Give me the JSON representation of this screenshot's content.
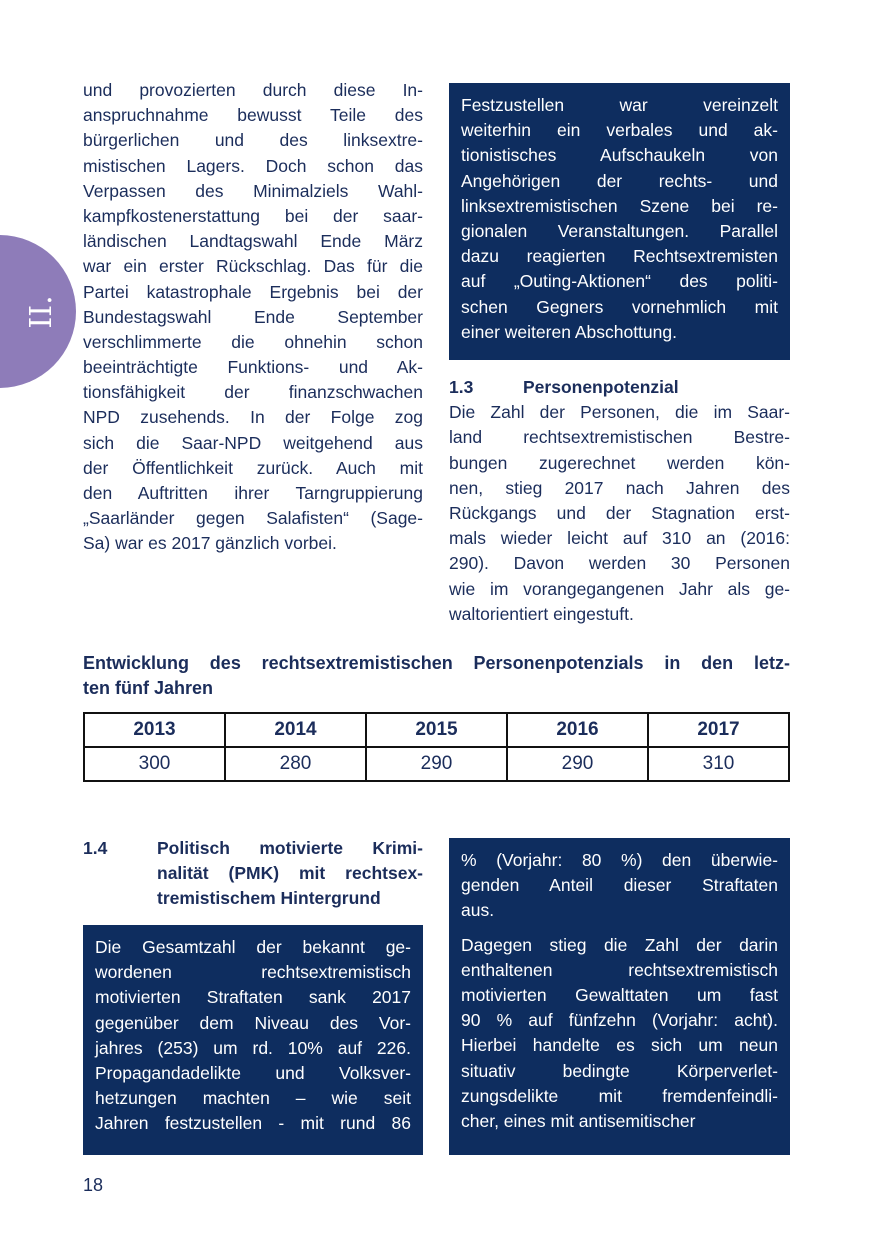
{
  "chapter_tab": "II.",
  "left_column": [
    "und provozierten durch diese In-",
    "anspruchnahme bewusst Teile des",
    "bürgerlichen und des linksextre-",
    "mistischen Lagers. Doch schon das",
    "Verpassen des Minimalziels Wahl-",
    "kampfkostenerstattung bei der saar-",
    "ländischen Landtagswahl Ende März",
    "war ein erster Rückschlag. Das für die",
    "Partei katastrophale Ergebnis bei der",
    "Bundestagswahl Ende September",
    "verschlimmerte die ohnehin schon",
    "beeinträchtigte Funktions- und Ak-",
    "tionsfähigkeit der finanzschwachen",
    "NPD zusehends. In der Folge zog",
    "sich die Saar-NPD weitgehend aus",
    "der Öffentlichkeit zurück. Auch mit",
    "den Auftritten ihrer Tarngruppierung",
    "„Saarländer gegen Salafisten“ (Sage-",
    "Sa) war es 2017 gänzlich vorbei."
  ],
  "box_top_right": [
    "Festzustellen war vereinzelt",
    "weiterhin ein verbales und ak-",
    "tionistisches Aufschaukeln von",
    "Angehörigen der rechts- und",
    "linksextremistischen Szene bei re-",
    "gionalen Veranstaltungen. Parallel",
    "dazu reagierten Rechtsextremisten",
    "auf „Outing-Aktionen“ des politi-",
    "schen Gegners vornehmlich mit",
    "einer weiteren Abschottung."
  ],
  "section_1_3": {
    "number": "1.3",
    "title": "Personenpotenzial",
    "lines": [
      "Die Zahl der Personen, die im Saar-",
      "land rechtsextremistischen Bestre-",
      "bungen zugerechnet werden kön-",
      "nen, stieg 2017 nach Jahren des",
      "Rückgangs und der Stagnation erst-",
      "mals wieder leicht auf 310 an (2016:",
      "290). Davon werden 30 Personen",
      "wie im vorangegangenen Jahr als ge-",
      "waltorientiert eingestuft."
    ]
  },
  "table": {
    "caption": [
      "Entwicklung des rechtsextremistischen Personenpotenzials in den letz-",
      "ten fünf Jahren"
    ],
    "headers": [
      "2013",
      "2014",
      "2015",
      "2016",
      "2017"
    ],
    "values": [
      "300",
      "280",
      "290",
      "290",
      "310"
    ]
  },
  "section_1_4": {
    "number": "1.4",
    "title": [
      "Politisch motivierte Krimi-",
      "nalität (PMK) mit rechtsex-",
      "tremistischem Hintergrund"
    ]
  },
  "box_bottom_left": [
    "Die Gesamtzahl der bekannt ge-",
    "wordenen rechtsextremistisch",
    "motivierten Straftaten sank 2017",
    "gegenüber dem Niveau des Vor-",
    "jahres (253) um rd. 10% auf 226.",
    "Propagandadelikte und Volksver-",
    "hetzungen machten – wie seit",
    "Jahren festzustellen - mit rund 86"
  ],
  "box_bottom_right": {
    "p1": [
      "% (Vorjahr: 80 %) den überwie-",
      "genden Anteil dieser Straftaten",
      "aus."
    ],
    "p2": [
      "Dagegen stieg die Zahl der darin",
      "enthaltenen rechtsextremistisch",
      "motivierten Gewalttaten um fast",
      "90 % auf fünfzehn (Vorjahr: acht).",
      "Hierbei handelte es sich um neun",
      "situativ bedingte Körperverlet-",
      "zungsdelikte mit fremdenfeindli-",
      "cher, eines mit antisemitischer"
    ]
  },
  "page_number": "18",
  "colors": {
    "navy": "#0e2d5f",
    "purple": "#8e7cb9",
    "text": "#1b2d5b"
  }
}
